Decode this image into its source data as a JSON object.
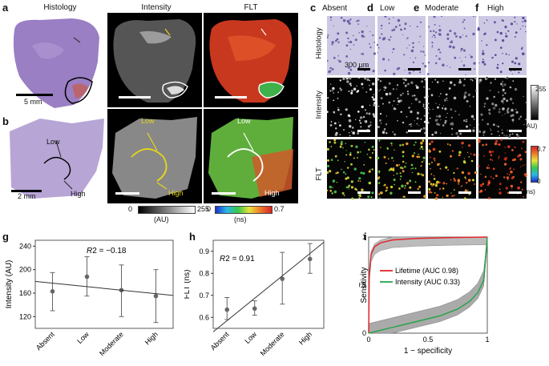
{
  "panel_labels": {
    "a": "a",
    "b": "b",
    "c": "c",
    "d": "d",
    "e": "e",
    "f": "f",
    "g": "g",
    "h": "h",
    "i": "i"
  },
  "top_headers": {
    "histology": "Histology",
    "intensity": "Intensity",
    "flt": "FLT"
  },
  "cdef_headers": {
    "absent": "Absent",
    "low": "Low",
    "moderate": "Moderate",
    "high": "High"
  },
  "row_labels": {
    "histology": "Histology",
    "intensity": "Intensity",
    "flt": "FLT"
  },
  "scale_labels": {
    "a": "5 mm",
    "b": "2 mm",
    "c": "300 µm"
  },
  "b_annotations": {
    "low": "Low",
    "high": "High"
  },
  "colorbars": {
    "intensity_bottom": {
      "min": "0",
      "max": "255",
      "unit": "(AU)"
    },
    "flt_bottom": {
      "min": "0",
      "max": "0.7",
      "unit": "(ns)"
    },
    "intensity_side": {
      "max": "255",
      "unit": "(AU)"
    },
    "flt_side": {
      "max": "0.7",
      "min": "0",
      "unit": "(ns)"
    }
  },
  "colors": {
    "tissue": "#9a7fc4",
    "grid_line": "#222222",
    "lifetime": "#e0262b",
    "intensity_curve": "#2aa34a",
    "flt_high": "#d9361e",
    "flt_low": "#3fb04a"
  },
  "chart_data": [
    {
      "panel": "g",
      "type": "scatter",
      "categories": [
        "Absent",
        "Low",
        "Moderate",
        "High"
      ],
      "values": [
        163,
        188,
        165,
        155
      ],
      "errors_low": [
        130,
        155,
        120,
        110
      ],
      "errors_high": [
        195,
        222,
        208,
        200
      ],
      "fit_line": [
        [
          0,
          177
        ],
        [
          3,
          159
        ]
      ],
      "ylabel": "Intensity (AU)",
      "ylim": [
        100,
        250
      ],
      "yticks": [
        120,
        160,
        200,
        240
      ],
      "annotation": {
        "r2_label": "R",
        "r2_value": "2 = −0.18"
      }
    },
    {
      "panel": "h",
      "type": "scatter",
      "categories": [
        "Absent",
        "Low",
        "Moderate",
        "High"
      ],
      "values": [
        0.635,
        0.64,
        0.775,
        0.865
      ],
      "errors_low": [
        0.59,
        0.61,
        0.66,
        0.8
      ],
      "errors_high": [
        0.69,
        0.675,
        0.895,
        0.935
      ],
      "fit_line": [
        [
          0,
          0.585
        ],
        [
          3,
          0.89
        ]
      ],
      "ylabel": "FLT (ns)",
      "ylim": [
        0.55,
        0.95
      ],
      "yticks": [
        0.6,
        0.7,
        0.8,
        0.9
      ],
      "annotation": {
        "r2_label": "R",
        "r2_value": "2 = 0.91"
      }
    },
    {
      "panel": "i",
      "type": "line",
      "xlabel": "1 − specificity",
      "ylabel": "Sensitivity",
      "xlim": [
        0,
        1
      ],
      "ylim": [
        0,
        1
      ],
      "xticks": [
        "0",
        "0.5",
        "1"
      ],
      "yticks": [
        "0",
        "0.5",
        "1"
      ],
      "series": [
        {
          "name": "Lifetime (AUC  0.98)",
          "x": [
            0,
            0.005,
            0.02,
            0.05,
            0.1,
            0.2,
            0.4,
            0.7,
            1
          ],
          "y": [
            0,
            0.6,
            0.82,
            0.9,
            0.94,
            0.97,
            0.985,
            0.995,
            1
          ]
        },
        {
          "name": "Intensity (AUC  0.33)",
          "x": [
            0,
            0.2,
            0.4,
            0.6,
            0.75,
            0.85,
            0.92,
            0.97,
            1
          ],
          "y": [
            0,
            0.06,
            0.12,
            0.18,
            0.25,
            0.33,
            0.42,
            0.55,
            1
          ]
        }
      ]
    }
  ]
}
